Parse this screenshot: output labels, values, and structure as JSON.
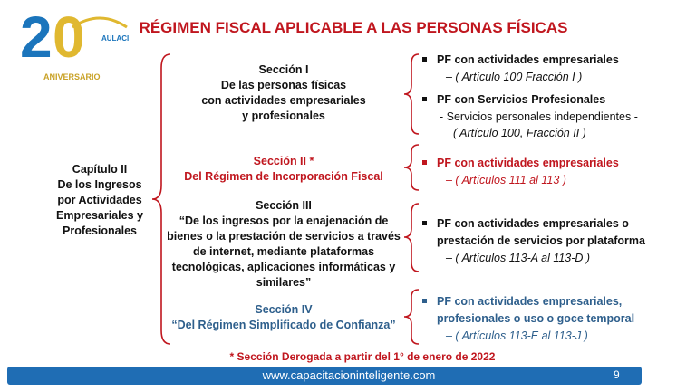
{
  "logo": {
    "digits": [
      "2",
      "0"
    ],
    "brand": "AULACI",
    "caption": "ANIVERSARIO"
  },
  "title": "RÉGIMEN FISCAL APLICABLE A LAS PERSONAS FÍSICAS",
  "chapter": [
    "Capítulo II",
    "De los Ingresos",
    "por Actividades",
    "Empresariales y",
    "Profesionales"
  ],
  "sections": [
    {
      "heading": "Sección I",
      "lines": [
        "De las personas físicas",
        "con actividades empresariales",
        "y profesionales"
      ],
      "items": [
        {
          "title": [
            "PF con actividades empresariales"
          ],
          "detail": [
            "–  ( Artículo 100 Fracción I )"
          ]
        },
        {
          "title": [
            "PF con Servicios Profesionales"
          ],
          "detail": [
            "- Servicios personales independientes -",
            "( Artículo 100, Fracción II )"
          ]
        }
      ]
    },
    {
      "heading": "Sección II *",
      "lines": [
        "Del Régimen de Incorporación Fiscal"
      ],
      "items": [
        {
          "title": [
            "PF con actividades empresariales"
          ],
          "detail": [
            "–   ( Artículos 111 al 113 )"
          ]
        }
      ]
    },
    {
      "heading": "Sección III",
      "lines": [
        "“De los ingresos por la enajenación de",
        "bienes o la prestación de servicios a través",
        "de internet, mediante plataformas",
        "tecnológicas, aplicaciones informáticas y",
        "similares”"
      ],
      "items": [
        {
          "title": [
            "PF con actividades empresariales o",
            "prestación de servicios por plataforma"
          ],
          "detail": [
            "–   ( Artículos 113-A al 113-D )"
          ]
        }
      ]
    },
    {
      "heading": "Sección IV",
      "lines": [
        "“Del Régimen Simplificado de Confianza”"
      ],
      "items": [
        {
          "title": [
            "PF con actividades empresariales,",
            "profesionales o uso o goce temporal"
          ],
          "detail": [
            "–   ( Artículos 113-E al 113-J )"
          ]
        }
      ]
    }
  ],
  "footnote": "* Sección Derogada a partir del 1° de enero de 2022",
  "footer": {
    "url": "www.capacitacioninteligente.com",
    "page": "9"
  }
}
